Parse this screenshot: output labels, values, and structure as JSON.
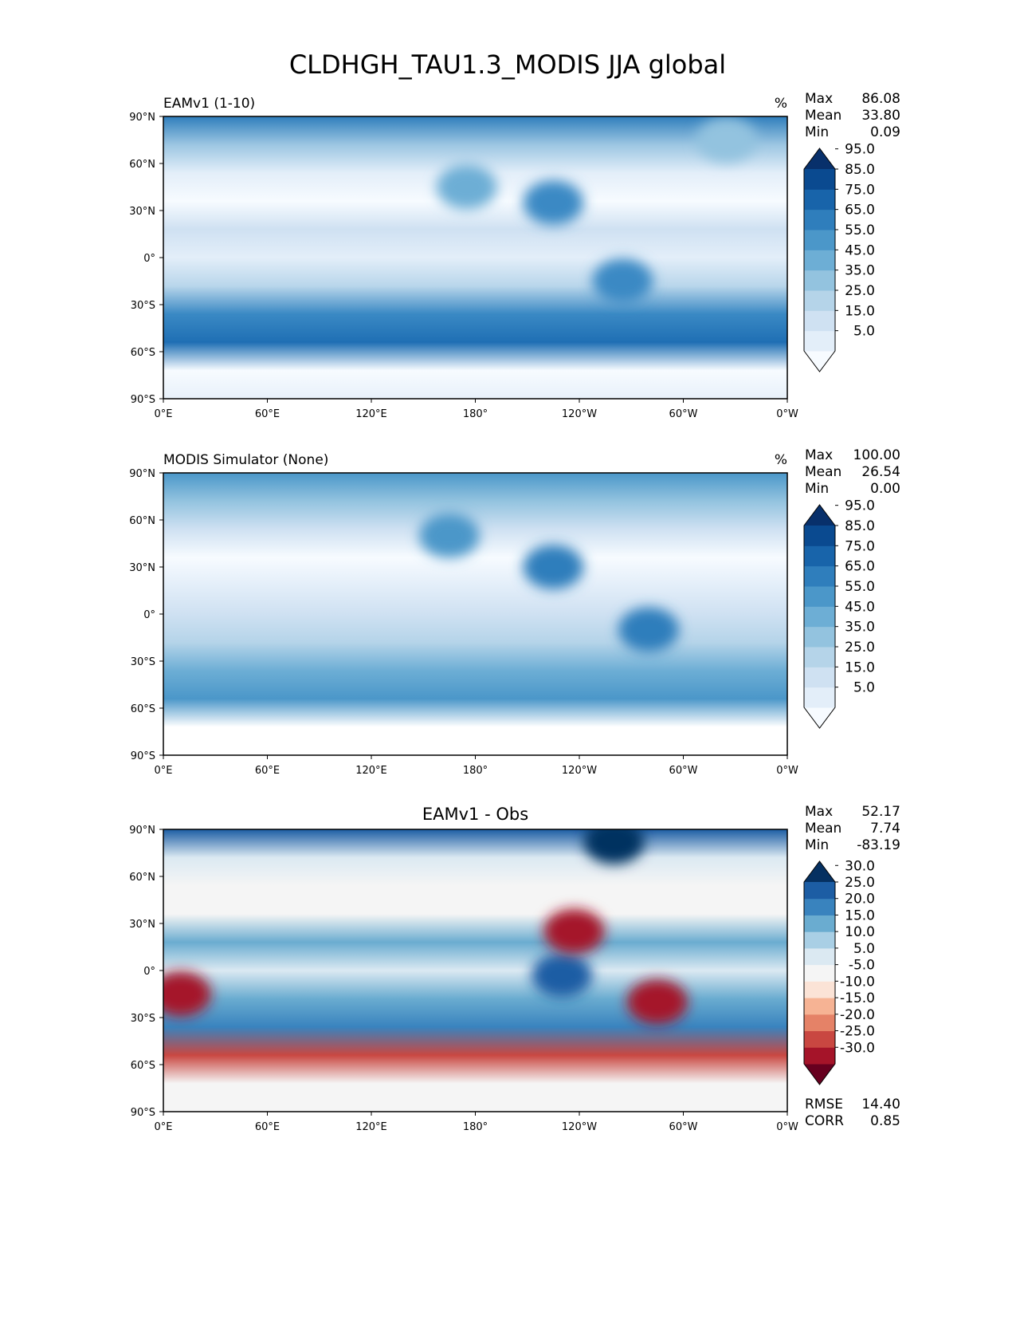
{
  "figure_title": "CLDHGH_TAU1.3_MODIS JJA global",
  "chart_data": [
    {
      "type": "heatmap",
      "title": "EAMv1 (1-10)",
      "units": "%",
      "stats": [
        {
          "label": "Max",
          "value": "86.08"
        },
        {
          "label": "Mean",
          "value": "33.80"
        },
        {
          "label": "Min",
          "value": "0.09"
        }
      ],
      "colorbar": {
        "levels": [
          "5.0",
          "15.0",
          "25.0",
          "35.0",
          "45.0",
          "55.0",
          "65.0",
          "75.0",
          "85.0",
          "95.0"
        ],
        "colors": [
          "#f7fbff",
          "#e3eef9",
          "#cfe1f2",
          "#b5d4e9",
          "#93c3df",
          "#6daed5",
          "#4b97c9",
          "#2f7ebc",
          "#1864aa",
          "#0a4a90",
          "#08306b"
        ]
      },
      "lat_bands": [
        "#e8f1fa",
        "#f7fbff",
        "#1f6fb4",
        "#3a89c4",
        "#b9d6eb",
        "#e3eef9",
        "#cfe1f2",
        "#f7fbff",
        "#e3eef9",
        "#9cc6e2",
        "#2f7ebc"
      ],
      "blobs": [
        {
          "lon": -135,
          "lat": 35,
          "color": "#3a89c4"
        },
        {
          "lon": -95,
          "lat": -15,
          "color": "#3a89c4"
        },
        {
          "lon": 175,
          "lat": 45,
          "color": "#6daed5"
        },
        {
          "lon": -35,
          "lat": 75,
          "color": "#93c3df"
        }
      ]
    },
    {
      "type": "heatmap",
      "title": "MODIS Simulator (None)",
      "units": "%",
      "stats": [
        {
          "label": "Max",
          "value": "100.00"
        },
        {
          "label": "Mean",
          "value": "26.54"
        },
        {
          "label": "Min",
          "value": "0.00"
        }
      ],
      "colorbar": {
        "levels": [
          "5.0",
          "15.0",
          "25.0",
          "35.0",
          "45.0",
          "55.0",
          "65.0",
          "75.0",
          "85.0",
          "95.0"
        ],
        "colors": [
          "#f7fbff",
          "#e3eef9",
          "#cfe1f2",
          "#b5d4e9",
          "#93c3df",
          "#6daed5",
          "#4b97c9",
          "#2f7ebc",
          "#1864aa",
          "#0a4a90",
          "#08306b"
        ]
      },
      "lat_bands": [
        "#ffffff",
        "#ffffff",
        "#4b97c9",
        "#6daed5",
        "#b5d4e9",
        "#cfe1f2",
        "#e3eef9",
        "#f7fbff",
        "#cfe1f2",
        "#93c3df",
        "#4b97c9"
      ],
      "blobs": [
        {
          "lon": -135,
          "lat": 30,
          "color": "#2f7ebc"
        },
        {
          "lon": -80,
          "lat": -10,
          "color": "#2f7ebc"
        },
        {
          "lon": 165,
          "lat": 50,
          "color": "#4b97c9"
        }
      ]
    },
    {
      "type": "heatmap",
      "title": "EAMv1 - Obs",
      "units": "",
      "stats": [
        {
          "label": "Max",
          "value": "52.17"
        },
        {
          "label": "Mean",
          "value": "7.74"
        },
        {
          "label": "Min",
          "value": "-83.19"
        }
      ],
      "extra_stats": [
        {
          "label": "RMSE",
          "value": "14.40"
        },
        {
          "label": "CORR",
          "value": "0.85"
        }
      ],
      "colorbar": {
        "levels": [
          "-30.0",
          "-25.0",
          "-20.0",
          "-15.0",
          "-10.0",
          "-5.0",
          "5.0",
          "10.0",
          "15.0",
          "20.0",
          "25.0",
          "30.0"
        ],
        "colors": [
          "#67001f",
          "#a51429",
          "#c94741",
          "#e58267",
          "#f6b394",
          "#fbe3d6",
          "#f5f5f5",
          "#dbe9f2",
          "#a9cfe5",
          "#6aacd0",
          "#3983be",
          "#1c5da4",
          "#053061"
        ]
      },
      "lat_bands": [
        "#f5f5f5",
        "#f5f5f5",
        "#c94741",
        "#3983be",
        "#6aacd0",
        "#dbe9f2",
        "#6aacd0",
        "#f5f5f5",
        "#f5f5f5",
        "#dbe9f2",
        "#1c5da4"
      ],
      "blobs": [
        {
          "lon": -130,
          "lat": -3,
          "color": "#1c5da4"
        },
        {
          "lon": -123,
          "lat": 25,
          "color": "#a51429"
        },
        {
          "lon": -75,
          "lat": -20,
          "color": "#a51429"
        },
        {
          "lon": 10,
          "lat": -15,
          "color": "#a51429"
        },
        {
          "lon": -100,
          "lat": 82,
          "color": "#053061"
        }
      ]
    }
  ],
  "axes": {
    "lat_ticks": [
      "90°N",
      "60°N",
      "30°N",
      "0°",
      "30°S",
      "60°S",
      "90°S"
    ],
    "lon_ticks": [
      "0°E",
      "60°E",
      "120°E",
      "180°",
      "120°W",
      "60°W",
      "0°W"
    ]
  }
}
